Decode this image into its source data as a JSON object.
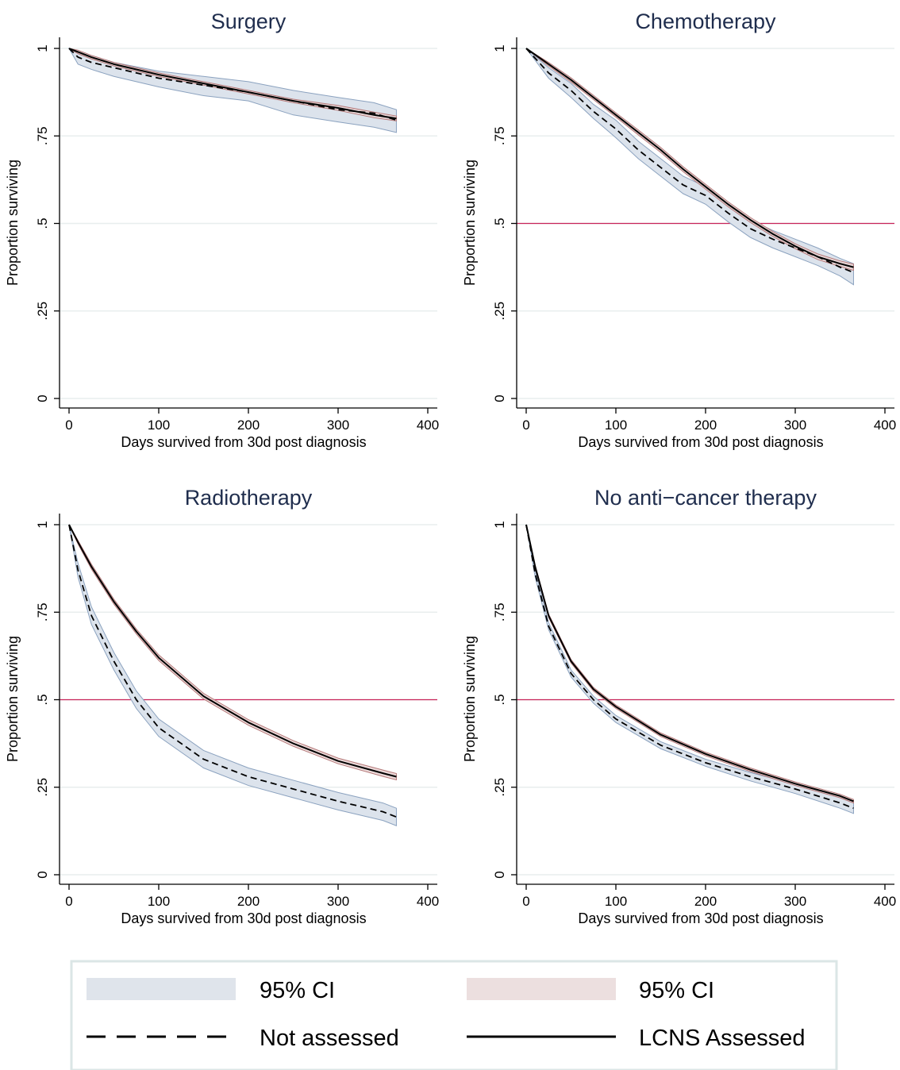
{
  "chart_data": [
    {
      "type": "line",
      "title": "Surgery",
      "xlabel": "Days survived from 30d post diagnosis",
      "ylabel": "Proportion surviving",
      "xlim": [
        0,
        400
      ],
      "ylim": [
        0,
        1
      ],
      "x_ticks": [
        "0",
        "100",
        "200",
        "300",
        "400"
      ],
      "y_ticks": [
        "0",
        ".25",
        ".5",
        ".75",
        "1"
      ],
      "grid": true,
      "reference_line_y": null,
      "x": [
        0,
        10,
        25,
        50,
        100,
        150,
        200,
        250,
        300,
        340,
        365
      ],
      "series": [
        {
          "name": "LCNS Assessed",
          "style": "solid",
          "values": [
            1.0,
            0.99,
            0.975,
            0.955,
            0.925,
            0.9,
            0.875,
            0.85,
            0.83,
            0.81,
            0.8
          ],
          "ci_lower": [
            1.0,
            0.985,
            0.97,
            0.95,
            0.92,
            0.895,
            0.87,
            0.845,
            0.823,
            0.802,
            0.793
          ],
          "ci_upper": [
            1.0,
            0.995,
            0.98,
            0.96,
            0.93,
            0.905,
            0.88,
            0.855,
            0.837,
            0.818,
            0.807
          ]
        },
        {
          "name": "Not assessed",
          "style": "dashed",
          "values": [
            1.0,
            0.975,
            0.96,
            0.945,
            0.915,
            0.895,
            0.875,
            0.85,
            0.825,
            0.815,
            0.795
          ],
          "ci_lower": [
            1.0,
            0.955,
            0.94,
            0.92,
            0.89,
            0.865,
            0.85,
            0.81,
            0.79,
            0.775,
            0.76
          ],
          "ci_upper": [
            1.0,
            0.99,
            0.98,
            0.96,
            0.935,
            0.92,
            0.905,
            0.88,
            0.86,
            0.845,
            0.825
          ]
        }
      ]
    },
    {
      "type": "line",
      "title": "Chemotherapy",
      "xlabel": "Days survived from 30d post diagnosis",
      "ylabel": "Proportion surviving",
      "xlim": [
        0,
        400
      ],
      "ylim": [
        0,
        1
      ],
      "x_ticks": [
        "0",
        "100",
        "200",
        "300",
        "400"
      ],
      "y_ticks": [
        "0",
        ".25",
        ".5",
        ".75",
        "1"
      ],
      "grid": true,
      "reference_line_y": 0.5,
      "x": [
        0,
        25,
        50,
        75,
        100,
        125,
        150,
        175,
        200,
        225,
        250,
        275,
        300,
        325,
        350,
        365
      ],
      "series": [
        {
          "name": "LCNS Assessed",
          "style": "solid",
          "values": [
            1.0,
            0.955,
            0.91,
            0.86,
            0.81,
            0.76,
            0.71,
            0.655,
            0.605,
            0.555,
            0.51,
            0.47,
            0.435,
            0.405,
            0.385,
            0.375
          ],
          "ci_lower": [
            1.0,
            0.95,
            0.904,
            0.854,
            0.804,
            0.753,
            0.703,
            0.648,
            0.598,
            0.548,
            0.503,
            0.463,
            0.428,
            0.397,
            0.377,
            0.366
          ],
          "ci_upper": [
            1.0,
            0.96,
            0.916,
            0.866,
            0.816,
            0.767,
            0.717,
            0.662,
            0.612,
            0.562,
            0.517,
            0.477,
            0.442,
            0.413,
            0.393,
            0.384
          ]
        },
        {
          "name": "Not assessed",
          "style": "dashed",
          "values": [
            1.0,
            0.93,
            0.88,
            0.82,
            0.77,
            0.71,
            0.66,
            0.61,
            0.58,
            0.53,
            0.485,
            0.455,
            0.43,
            0.405,
            0.375,
            0.36
          ],
          "ci_lower": [
            1.0,
            0.915,
            0.86,
            0.8,
            0.745,
            0.685,
            0.635,
            0.585,
            0.555,
            0.505,
            0.46,
            0.43,
            0.405,
            0.38,
            0.35,
            0.325
          ],
          "ci_upper": [
            1.0,
            0.945,
            0.9,
            0.84,
            0.795,
            0.735,
            0.685,
            0.635,
            0.605,
            0.555,
            0.51,
            0.48,
            0.455,
            0.43,
            0.4,
            0.385
          ]
        }
      ]
    },
    {
      "type": "line",
      "title": "Radiotherapy",
      "xlabel": "Days survived from 30d post diagnosis",
      "ylabel": "Proportion surviving",
      "xlim": [
        0,
        400
      ],
      "ylim": [
        0,
        1
      ],
      "x_ticks": [
        "0",
        "100",
        "200",
        "300",
        "400"
      ],
      "y_ticks": [
        "0",
        ".25",
        ".5",
        ".75",
        "1"
      ],
      "grid": true,
      "reference_line_y": 0.5,
      "x": [
        0,
        10,
        25,
        50,
        75,
        100,
        150,
        200,
        250,
        300,
        350,
        365
      ],
      "series": [
        {
          "name": "LCNS Assessed",
          "style": "solid",
          "values": [
            1.0,
            0.95,
            0.88,
            0.78,
            0.695,
            0.62,
            0.51,
            0.435,
            0.375,
            0.325,
            0.29,
            0.28
          ],
          "ci_lower": [
            1.0,
            0.945,
            0.873,
            0.773,
            0.688,
            0.612,
            0.502,
            0.427,
            0.367,
            0.317,
            0.281,
            0.271
          ],
          "ci_upper": [
            1.0,
            0.955,
            0.887,
            0.787,
            0.702,
            0.628,
            0.518,
            0.443,
            0.383,
            0.333,
            0.299,
            0.289
          ]
        },
        {
          "name": "Not assessed",
          "style": "dashed",
          "values": [
            1.0,
            0.87,
            0.74,
            0.61,
            0.5,
            0.42,
            0.33,
            0.28,
            0.245,
            0.21,
            0.18,
            0.165
          ],
          "ci_lower": [
            1.0,
            0.85,
            0.715,
            0.585,
            0.475,
            0.395,
            0.305,
            0.255,
            0.22,
            0.185,
            0.155,
            0.14
          ],
          "ci_upper": [
            1.0,
            0.89,
            0.765,
            0.635,
            0.525,
            0.445,
            0.355,
            0.305,
            0.27,
            0.235,
            0.205,
            0.19
          ]
        }
      ]
    },
    {
      "type": "line",
      "title": "No anti−cancer therapy",
      "xlabel": "Days survived from 30d post diagnosis",
      "ylabel": "Proportion surviving",
      "xlim": [
        0,
        400
      ],
      "ylim": [
        0,
        1
      ],
      "x_ticks": [
        "0",
        "100",
        "200",
        "300",
        "400"
      ],
      "y_ticks": [
        "0",
        ".25",
        ".5",
        ".75",
        "1"
      ],
      "grid": true,
      "reference_line_y": 0.5,
      "x": [
        0,
        10,
        25,
        50,
        75,
        100,
        150,
        200,
        250,
        300,
        350,
        365
      ],
      "series": [
        {
          "name": "LCNS Assessed",
          "style": "solid",
          "values": [
            1.0,
            0.88,
            0.74,
            0.61,
            0.53,
            0.48,
            0.4,
            0.345,
            0.3,
            0.26,
            0.225,
            0.21
          ],
          "ci_lower": [
            1.0,
            0.876,
            0.735,
            0.605,
            0.525,
            0.475,
            0.395,
            0.34,
            0.295,
            0.255,
            0.22,
            0.205
          ],
          "ci_upper": [
            1.0,
            0.884,
            0.745,
            0.615,
            0.535,
            0.485,
            0.405,
            0.35,
            0.305,
            0.265,
            0.23,
            0.215
          ]
        },
        {
          "name": "Not assessed",
          "style": "dashed",
          "values": [
            1.0,
            0.86,
            0.71,
            0.575,
            0.5,
            0.445,
            0.37,
            0.32,
            0.28,
            0.245,
            0.205,
            0.19
          ],
          "ci_lower": [
            1.0,
            0.85,
            0.7,
            0.565,
            0.49,
            0.435,
            0.36,
            0.31,
            0.268,
            0.232,
            0.19,
            0.175
          ],
          "ci_upper": [
            1.0,
            0.87,
            0.72,
            0.585,
            0.51,
            0.455,
            0.38,
            0.33,
            0.292,
            0.258,
            0.22,
            0.205
          ]
        }
      ]
    }
  ],
  "legend": {
    "entries": [
      {
        "label": "95% CI",
        "kind": "band",
        "color": "#dfe4eb"
      },
      {
        "label": "95% CI",
        "kind": "band",
        "color": "#ecdfdf"
      },
      {
        "label": "Not assessed",
        "kind": "dashed-line",
        "color": "#000000"
      },
      {
        "label": "LCNS Assessed",
        "kind": "solid-line",
        "color": "#000000"
      }
    ]
  },
  "colors": {
    "not_assessed_band": "#dce3ec",
    "not_assessed_band_edge": "#8ba2bf",
    "lcns_band": "#e9d2d2",
    "lcns_band_edge": "#b57a7a",
    "reference_line": "#c8245a",
    "grid": "#e8eeee",
    "title": "#1f2d4d",
    "legend_border": "#dbe6e6"
  }
}
